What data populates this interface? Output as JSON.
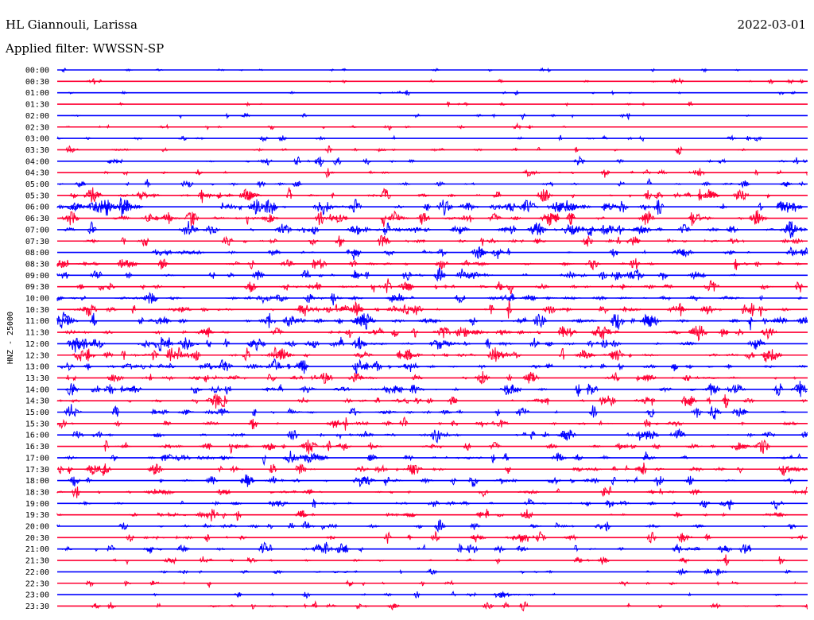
{
  "header": {
    "station": "HL Giannouli, Larissa",
    "date": "2022-03-01",
    "filter": "Applied filter: WWSSN-SP"
  },
  "chart_data": {
    "type": "line",
    "ylabel": "HNZ - 25000",
    "colors": [
      "#0000ff",
      "#ff0033"
    ],
    "rows": [
      {
        "label": "00:00",
        "activity": 0.12
      },
      {
        "label": "00:30",
        "activity": 0.14
      },
      {
        "label": "01:00",
        "activity": 0.12
      },
      {
        "label": "01:30",
        "activity": 0.1
      },
      {
        "label": "02:00",
        "activity": 0.12
      },
      {
        "label": "02:30",
        "activity": 0.18
      },
      {
        "label": "03:00",
        "activity": 0.22
      },
      {
        "label": "03:30",
        "activity": 0.28
      },
      {
        "label": "04:00",
        "activity": 0.3
      },
      {
        "label": "04:30",
        "activity": 0.28
      },
      {
        "label": "05:00",
        "activity": 0.35
      },
      {
        "label": "05:30",
        "activity": 0.65
      },
      {
        "label": "06:00",
        "activity": 0.85
      },
      {
        "label": "06:30",
        "activity": 0.75
      },
      {
        "label": "07:00",
        "activity": 0.8
      },
      {
        "label": "07:30",
        "activity": 0.55
      },
      {
        "label": "08:00",
        "activity": 0.55
      },
      {
        "label": "08:30",
        "activity": 0.55
      },
      {
        "label": "09:00",
        "activity": 0.55
      },
      {
        "label": "09:30",
        "activity": 0.6
      },
      {
        "label": "10:00",
        "activity": 0.65
      },
      {
        "label": "10:30",
        "activity": 0.75
      },
      {
        "label": "11:00",
        "activity": 0.8
      },
      {
        "label": "11:30",
        "activity": 0.8
      },
      {
        "label": "12:00",
        "activity": 0.7
      },
      {
        "label": "12:30",
        "activity": 0.75
      },
      {
        "label": "13:00",
        "activity": 0.7
      },
      {
        "label": "13:30",
        "activity": 0.6
      },
      {
        "label": "14:00",
        "activity": 0.65
      },
      {
        "label": "14:30",
        "activity": 0.55
      },
      {
        "label": "15:00",
        "activity": 0.55
      },
      {
        "label": "15:30",
        "activity": 0.5
      },
      {
        "label": "16:00",
        "activity": 0.6
      },
      {
        "label": "16:30",
        "activity": 0.6
      },
      {
        "label": "17:00",
        "activity": 0.55
      },
      {
        "label": "17:30",
        "activity": 0.55
      },
      {
        "label": "18:00",
        "activity": 0.5
      },
      {
        "label": "18:30",
        "activity": 0.5
      },
      {
        "label": "19:00",
        "activity": 0.5
      },
      {
        "label": "19:30",
        "activity": 0.5
      },
      {
        "label": "20:00",
        "activity": 0.45
      },
      {
        "label": "20:30",
        "activity": 0.4
      },
      {
        "label": "21:00",
        "activity": 0.45
      },
      {
        "label": "21:30",
        "activity": 0.35
      },
      {
        "label": "22:00",
        "activity": 0.25
      },
      {
        "label": "22:30",
        "activity": 0.2
      },
      {
        "label": "23:00",
        "activity": 0.25
      },
      {
        "label": "23:30",
        "activity": 0.3
      }
    ]
  }
}
